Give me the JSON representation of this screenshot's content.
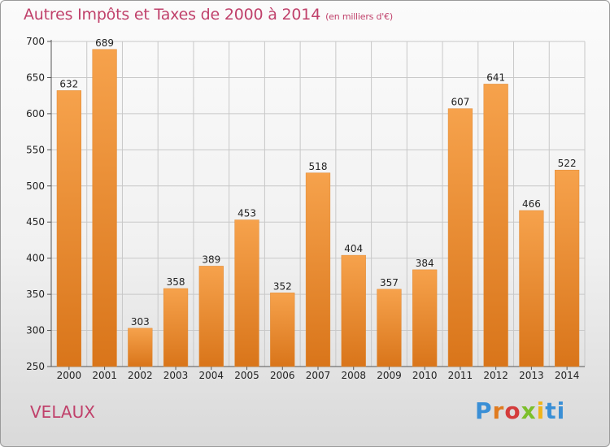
{
  "header": {
    "title": "Autres Impôts et Taxes de 2000 à 2014",
    "unit": "(en milliers d'€)"
  },
  "footer": {
    "town": "VELAUX",
    "logo": [
      "P",
      "r",
      "o",
      "x",
      "i",
      "ti"
    ]
  },
  "colors": {
    "bar_top": "#f6a24c",
    "bar_bottom": "#d9751a",
    "title": "#c0416b",
    "grid": "#c8c8c8"
  },
  "chart_data": {
    "type": "bar",
    "categories": [
      "2000",
      "2001",
      "2002",
      "2003",
      "2004",
      "2005",
      "2006",
      "2007",
      "2008",
      "2009",
      "2010",
      "2011",
      "2012",
      "2013",
      "2014"
    ],
    "values": [
      632,
      689,
      303,
      358,
      389,
      453,
      352,
      518,
      404,
      357,
      384,
      607,
      641,
      466,
      522
    ],
    "data_labels": [
      "632",
      "689",
      "303",
      "358",
      "389",
      "453",
      "352",
      "518",
      "404",
      "357",
      "384",
      "607",
      "641",
      "466",
      "522"
    ],
    "ylim": [
      250,
      700
    ],
    "yticks": [
      250,
      300,
      350,
      400,
      450,
      500,
      550,
      600,
      650,
      700
    ],
    "ytick_labels": [
      "250",
      "300",
      "350",
      "400",
      "450",
      "500",
      "550",
      "600",
      "650",
      "700"
    ],
    "grid": true
  }
}
